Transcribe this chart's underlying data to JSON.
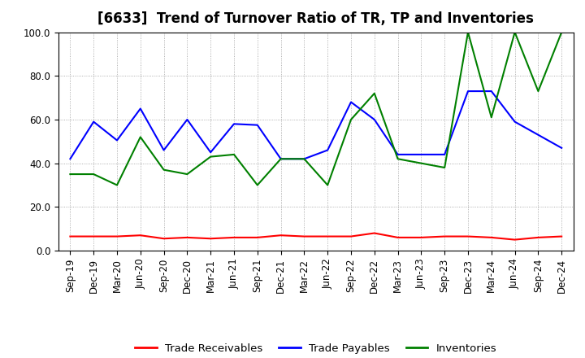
{
  "title": "[6633]  Trend of Turnover Ratio of TR, TP and Inventories",
  "x_labels": [
    "Sep-19",
    "Dec-19",
    "Mar-20",
    "Jun-20",
    "Sep-20",
    "Dec-20",
    "Mar-21",
    "Jun-21",
    "Sep-21",
    "Dec-21",
    "Mar-22",
    "Jun-22",
    "Sep-22",
    "Dec-22",
    "Mar-23",
    "Jun-23",
    "Sep-23",
    "Dec-23",
    "Mar-24",
    "Jun-24",
    "Sep-24",
    "Dec-24"
  ],
  "trade_receivables": [
    6.5,
    6.5,
    6.5,
    7.0,
    5.5,
    6.0,
    5.5,
    6.0,
    6.0,
    7.0,
    6.5,
    6.5,
    6.5,
    8.0,
    6.0,
    6.0,
    6.5,
    6.5,
    6.0,
    5.0,
    6.0,
    6.5
  ],
  "trade_payables": [
    42.0,
    59.0,
    50.5,
    65.0,
    46.0,
    60.0,
    45.0,
    58.0,
    57.5,
    42.0,
    42.0,
    46.0,
    68.0,
    60.0,
    44.0,
    44.0,
    44.0,
    73.0,
    73.0,
    59.0,
    53.0,
    47.0
  ],
  "inventories": [
    35.0,
    35.0,
    30.0,
    52.0,
    37.0,
    35.0,
    43.0,
    44.0,
    30.0,
    42.0,
    42.0,
    30.0,
    60.0,
    72.0,
    42.0,
    40.0,
    38.0,
    100.0,
    61.0,
    100.0,
    73.0,
    100.0
  ],
  "ylim": [
    0.0,
    100.0
  ],
  "yticks": [
    0.0,
    20.0,
    40.0,
    60.0,
    80.0,
    100.0
  ],
  "line_color_tr": "#ff0000",
  "line_color_tp": "#0000ff",
  "line_color_inv": "#008000",
  "legend_labels": [
    "Trade Receivables",
    "Trade Payables",
    "Inventories"
  ],
  "background_color": "#ffffff",
  "grid_color": "#999999",
  "title_fontsize": 12,
  "tick_fontsize": 8.5,
  "legend_fontsize": 9.5
}
